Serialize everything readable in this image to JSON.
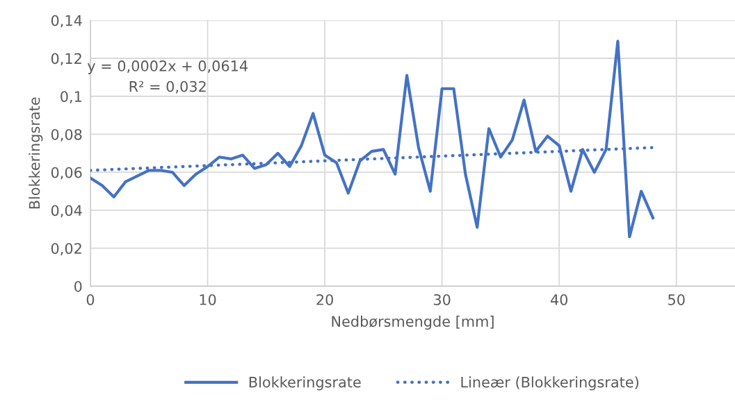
{
  "chart_data": {
    "type": "line",
    "xlabel": "Nedbørsmengde [mm]",
    "ylabel": "Blokkeringsrate",
    "x": [
      0,
      1,
      2,
      3,
      4,
      5,
      6,
      7,
      8,
      9,
      10,
      11,
      12,
      13,
      14,
      15,
      16,
      17,
      18,
      19,
      20,
      21,
      22,
      23,
      24,
      25,
      26,
      27,
      28,
      29,
      30,
      31,
      32,
      33,
      34,
      35,
      36,
      37,
      38,
      39,
      40,
      41,
      42,
      43,
      44,
      45,
      46,
      47,
      48
    ],
    "series": [
      {
        "name": "Blokkeringsrate",
        "color": "#4472c4",
        "line_style": "solid",
        "values": [
          0.057,
          0.053,
          0.047,
          0.055,
          0.058,
          0.061,
          0.061,
          0.06,
          0.053,
          0.059,
          0.063,
          0.068,
          0.067,
          0.069,
          0.062,
          0.064,
          0.07,
          0.063,
          0.074,
          0.091,
          0.069,
          0.065,
          0.049,
          0.066,
          0.071,
          0.072,
          0.059,
          0.111,
          0.073,
          0.05,
          0.104,
          0.104,
          0.059,
          0.031,
          0.083,
          0.068,
          0.077,
          0.098,
          0.071,
          0.079,
          0.074,
          0.05,
          0.072,
          0.06,
          0.072,
          0.129,
          0.026,
          0.05,
          0.036
        ]
      },
      {
        "name": "Lineær (Blokkeringsrate)",
        "color": "#4472c4",
        "line_style": "dotted",
        "x": [
          0,
          48
        ],
        "values": [
          0.061,
          0.073
        ]
      }
    ],
    "annotations": [
      "y = 0,0002x + 0,0614\nR² = 0,032"
    ],
    "xlim": [
      0,
      55
    ],
    "xticks": [
      0,
      10,
      20,
      30,
      40,
      50
    ],
    "ylim": [
      0,
      0.14
    ],
    "yticks": [
      {
        "value": 0,
        "label": "0"
      },
      {
        "value": 0.02,
        "label": "0,02"
      },
      {
        "value": 0.04,
        "label": "0,04"
      },
      {
        "value": 0.06,
        "label": "0,06"
      },
      {
        "value": 0.08,
        "label": "0,08"
      },
      {
        "value": 0.1,
        "label": "0,1"
      },
      {
        "value": 0.12,
        "label": "0,12"
      },
      {
        "value": 0.14,
        "label": "0,14"
      }
    ],
    "grid": true,
    "legend": "bottom",
    "marker": "none"
  }
}
